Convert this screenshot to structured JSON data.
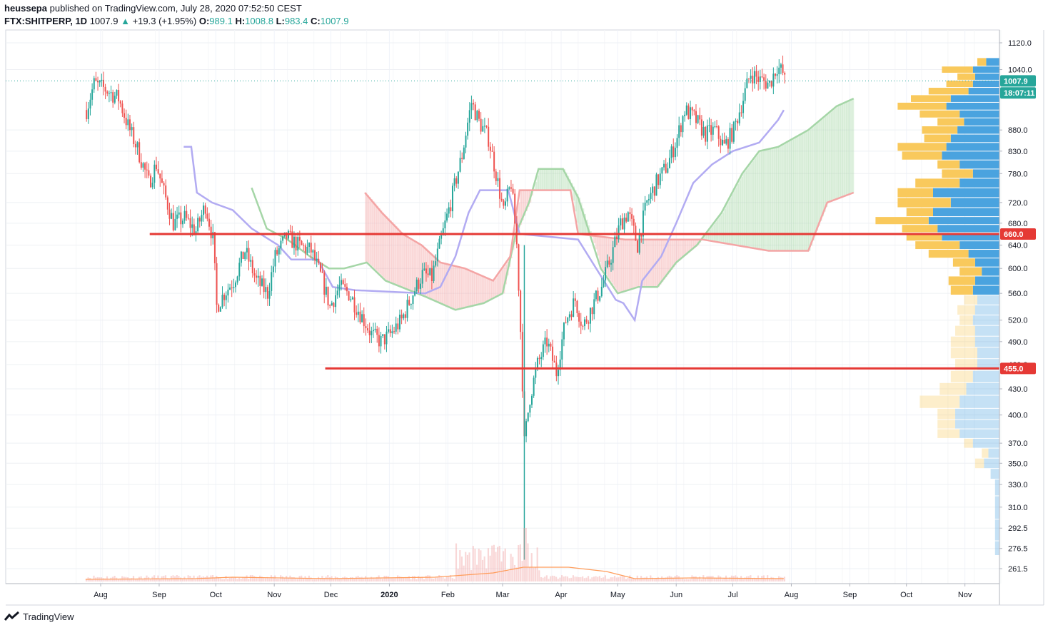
{
  "header": {
    "publisher": "heussepa",
    "published_text": "published on TradingView.com, July 28, 2020 07:52:50 CEST",
    "symbol": "FTX:SHITPERP, 1D",
    "last": "1007.9",
    "arrow": "▲",
    "change": "+19.3 (+1.95%)",
    "open_label": "O:",
    "open": "989.1",
    "high_label": "H:",
    "high": "1008.8",
    "low_label": "L:",
    "low": "983.4",
    "close_label": "C:",
    "close": "1007.9"
  },
  "footer": {
    "brand": "TradingView"
  },
  "colors": {
    "up": "#26a69a",
    "down": "#ef5350",
    "level": "#e53935",
    "kijun": "#b2abf2",
    "spanA": "#a5d6a7",
    "spanB": "#f4a5a5",
    "vp_up": "#4aa3df",
    "vp_down": "#f9c95c",
    "vol_ma": "#ff9c5a"
  },
  "chart_data": {
    "type": "candlestick",
    "y_axis": {
      "ticks": [
        "1120.0",
        "1040.0",
        "880.0",
        "830.0",
        "780.0",
        "720.0",
        "680.0",
        "640.0",
        "600.0",
        "560.0",
        "520.0",
        "490.0",
        "460.0",
        "430.0",
        "400.0",
        "370.0",
        "350.0",
        "330.0",
        "310.0",
        "292.5",
        "276.5",
        "261.5"
      ],
      "range": [
        250,
        1150
      ],
      "scale": "log"
    },
    "x_axis": {
      "ticks": [
        "Aug",
        "Sep",
        "Oct",
        "Nov",
        "Dec",
        "2020",
        "Feb",
        "Mar",
        "Apr",
        "May",
        "Jun",
        "Jul",
        "Aug",
        "Sep",
        "Oct",
        "Nov"
      ]
    },
    "price_badges": [
      {
        "label": "1007.9",
        "value": 1007.9,
        "color": "#26a69a"
      },
      {
        "label": "18:07:11",
        "value": 975,
        "color": "#26a69a"
      },
      {
        "label": "660.0",
        "value": 660.0,
        "color": "#e53935"
      },
      {
        "label": "455.0",
        "value": 455.0,
        "color": "#e53935"
      }
    ],
    "horizontal_levels": [
      {
        "value": 660.0,
        "from": "2019-08-27",
        "to": "2020-11-30"
      },
      {
        "value": 455.0,
        "from": "2019-11-28",
        "to": "2020-11-30"
      }
    ],
    "close_path": [
      [
        "2019-07-24",
        930
      ],
      [
        "2019-07-28",
        1000
      ],
      [
        "2019-08-03",
        985
      ],
      [
        "2019-08-10",
        960
      ],
      [
        "2019-08-15",
        890
      ],
      [
        "2019-08-20",
        835
      ],
      [
        "2019-08-26",
        760
      ],
      [
        "2019-08-30",
        800
      ],
      [
        "2019-09-03",
        740
      ],
      [
        "2019-09-08",
        680
      ],
      [
        "2019-09-14",
        690
      ],
      [
        "2019-09-20",
        665
      ],
      [
        "2019-09-25",
        715
      ],
      [
        "2019-09-29",
        650
      ],
      [
        "2019-10-01",
        540
      ],
      [
        "2019-10-05",
        560
      ],
      [
        "2019-10-10",
        580
      ],
      [
        "2019-10-16",
        630
      ],
      [
        "2019-10-22",
        580
      ],
      [
        "2019-10-28",
        560
      ],
      [
        "2019-11-01",
        620
      ],
      [
        "2019-11-07",
        655
      ],
      [
        "2019-11-13",
        640
      ],
      [
        "2019-11-20",
        630
      ],
      [
        "2019-11-26",
        580
      ],
      [
        "2019-11-30",
        540
      ],
      [
        "2019-12-05",
        570
      ],
      [
        "2019-12-10",
        560
      ],
      [
        "2019-12-16",
        530
      ],
      [
        "2019-12-22",
        500
      ],
      [
        "2019-12-27",
        490
      ],
      [
        "2020-01-01",
        500
      ],
      [
        "2020-01-07",
        520
      ],
      [
        "2020-01-13",
        560
      ],
      [
        "2020-01-18",
        590
      ],
      [
        "2020-01-23",
        585
      ],
      [
        "2020-01-28",
        650
      ],
      [
        "2020-02-02",
        720
      ],
      [
        "2020-02-08",
        820
      ],
      [
        "2020-02-13",
        950
      ],
      [
        "2020-02-17",
        900
      ],
      [
        "2020-02-22",
        860
      ],
      [
        "2020-02-26",
        780
      ],
      [
        "2020-03-01",
        700
      ],
      [
        "2020-03-05",
        760
      ],
      [
        "2020-03-08",
        640
      ],
      [
        "2020-03-12",
        370
      ],
      [
        "2020-03-15",
        420
      ],
      [
        "2020-03-19",
        460
      ],
      [
        "2020-03-24",
        490
      ],
      [
        "2020-03-29",
        450
      ],
      [
        "2020-04-03",
        520
      ],
      [
        "2020-04-08",
        550
      ],
      [
        "2020-04-12",
        510
      ],
      [
        "2020-04-17",
        540
      ],
      [
        "2020-04-22",
        570
      ],
      [
        "2020-04-27",
        620
      ],
      [
        "2020-05-02",
        680
      ],
      [
        "2020-05-06",
        700
      ],
      [
        "2020-05-11",
        640
      ],
      [
        "2020-05-16",
        720
      ],
      [
        "2020-05-21",
        760
      ],
      [
        "2020-05-27",
        800
      ],
      [
        "2020-06-01",
        860
      ],
      [
        "2020-06-05",
        930
      ],
      [
        "2020-06-10",
        910
      ],
      [
        "2020-06-16",
        870
      ],
      [
        "2020-06-21",
        880
      ],
      [
        "2020-06-26",
        840
      ],
      [
        "2020-07-01",
        880
      ],
      [
        "2020-07-06",
        960
      ],
      [
        "2020-07-10",
        1030
      ],
      [
        "2020-07-15",
        1010
      ],
      [
        "2020-07-20",
        1000
      ],
      [
        "2020-07-24",
        1050
      ],
      [
        "2020-07-27",
        1030
      ],
      [
        "2020-07-28",
        1007.9
      ]
    ],
    "kijun": [
      [
        "2019-09-14",
        840
      ],
      [
        "2019-09-18",
        840
      ],
      [
        "2019-09-21",
        740
      ],
      [
        "2019-09-29",
        720
      ],
      [
        "2019-10-10",
        705
      ],
      [
        "2019-10-20",
        670
      ],
      [
        "2019-11-03",
        640
      ],
      [
        "2019-11-10",
        615
      ],
      [
        "2019-11-24",
        615
      ],
      [
        "2019-12-02",
        570
      ],
      [
        "2019-12-14",
        565
      ],
      [
        "2020-01-20",
        560
      ],
      [
        "2020-01-28",
        570
      ],
      [
        "2020-02-05",
        620
      ],
      [
        "2020-02-12",
        700
      ],
      [
        "2020-02-18",
        745
      ],
      [
        "2020-03-04",
        745
      ],
      [
        "2020-03-10",
        660
      ],
      [
        "2020-04-10",
        650
      ],
      [
        "2020-04-30",
        550
      ],
      [
        "2020-05-04",
        545
      ],
      [
        "2020-05-10",
        520
      ],
      [
        "2020-05-14",
        580
      ],
      [
        "2020-05-24",
        620
      ],
      [
        "2020-06-01",
        680
      ],
      [
        "2020-06-10",
        760
      ],
      [
        "2020-06-20",
        800
      ],
      [
        "2020-07-01",
        830
      ],
      [
        "2020-07-15",
        850
      ],
      [
        "2020-07-25",
        905
      ],
      [
        "2020-07-28",
        930
      ]
    ],
    "ichimoku_cloud": {
      "span_a": [
        [
          "2019-10-20",
          750
        ],
        [
          "2019-10-28",
          670
        ],
        [
          "2019-11-08",
          650
        ],
        [
          "2019-11-20",
          620
        ],
        [
          "2019-11-30",
          600
        ],
        [
          "2019-12-08",
          600
        ],
        [
          "2019-12-20",
          610
        ],
        [
          "2019-12-30",
          580
        ],
        [
          "2020-01-20",
          555
        ],
        [
          "2020-02-05",
          535
        ],
        [
          "2020-02-20",
          545
        ],
        [
          "2020-03-01",
          560
        ],
        [
          "2020-03-08",
          660
        ],
        [
          "2020-03-15",
          720
        ],
        [
          "2020-03-20",
          790
        ],
        [
          "2020-04-02",
          790
        ],
        [
          "2020-04-10",
          730
        ],
        [
          "2020-04-22",
          600
        ],
        [
          "2020-05-01",
          560
        ],
        [
          "2020-05-12",
          570
        ],
        [
          "2020-05-22",
          570
        ],
        [
          "2020-06-01",
          610
        ],
        [
          "2020-06-12",
          640
        ],
        [
          "2020-06-25",
          700
        ],
        [
          "2020-07-06",
          780
        ],
        [
          "2020-07-15",
          830
        ],
        [
          "2020-07-25",
          840
        ],
        [
          "2020-08-10",
          880
        ],
        [
          "2020-08-25",
          940
        ],
        [
          "2020-09-03",
          960
        ]
      ],
      "span_b": [
        [
          "2019-12-19",
          740
        ],
        [
          "2019-12-28",
          700
        ],
        [
          "2020-01-08",
          660
        ],
        [
          "2020-01-18",
          640
        ],
        [
          "2020-01-28",
          610
        ],
        [
          "2020-02-10",
          600
        ],
        [
          "2020-02-25",
          580
        ],
        [
          "2020-03-05",
          620
        ],
        [
          "2020-03-10",
          745
        ],
        [
          "2020-04-06",
          745
        ],
        [
          "2020-04-10",
          660
        ],
        [
          "2020-05-05",
          650
        ],
        [
          "2020-06-15",
          650
        ],
        [
          "2020-07-20",
          630
        ],
        [
          "2020-08-10",
          630
        ],
        [
          "2020-08-20",
          720
        ],
        [
          "2020-09-03",
          740
        ]
      ]
    },
    "volume_profile": {
      "rows": [
        {
          "price": 1060,
          "up": 30,
          "down": 20
        },
        {
          "price": 1040,
          "up": 60,
          "down": 70
        },
        {
          "price": 1020,
          "up": 55,
          "down": 40
        },
        {
          "price": 1000,
          "up": 60,
          "down": 60
        },
        {
          "price": 980,
          "up": 70,
          "down": 90
        },
        {
          "price": 960,
          "up": 110,
          "down": 90
        },
        {
          "price": 940,
          "up": 120,
          "down": 110
        },
        {
          "price": 920,
          "up": 90,
          "down": 90
        },
        {
          "price": 900,
          "up": 80,
          "down": 60
        },
        {
          "price": 880,
          "up": 95,
          "down": 80
        },
        {
          "price": 860,
          "up": 110,
          "down": 60
        },
        {
          "price": 840,
          "up": 120,
          "down": 110
        },
        {
          "price": 820,
          "up": 130,
          "down": 90
        },
        {
          "price": 800,
          "up": 90,
          "down": 50
        },
        {
          "price": 780,
          "up": 60,
          "down": 70
        },
        {
          "price": 760,
          "up": 90,
          "down": 100
        },
        {
          "price": 740,
          "up": 150,
          "down": 80
        },
        {
          "price": 720,
          "up": 110,
          "down": 120
        },
        {
          "price": 700,
          "up": 150,
          "down": 60
        },
        {
          "price": 685,
          "up": 160,
          "down": 120
        },
        {
          "price": 670,
          "up": 140,
          "down": 80
        },
        {
          "price": 655,
          "up": 130,
          "down": 80
        },
        {
          "price": 640,
          "up": 90,
          "down": 100
        },
        {
          "price": 625,
          "up": 70,
          "down": 90
        },
        {
          "price": 610,
          "up": 55,
          "down": 50
        },
        {
          "price": 595,
          "up": 40,
          "down": 50
        },
        {
          "price": 580,
          "up": 55,
          "down": 60
        },
        {
          "price": 565,
          "up": 60,
          "down": 50
        },
        {
          "price": 550,
          "up": 50,
          "down": 30
        },
        {
          "price": 535,
          "up": 55,
          "down": 40
        },
        {
          "price": 520,
          "up": 60,
          "down": 30
        },
        {
          "price": 505,
          "up": 55,
          "down": 45
        },
        {
          "price": 490,
          "up": 55,
          "down": 55
        },
        {
          "price": 475,
          "up": 50,
          "down": 60
        },
        {
          "price": 460,
          "up": 50,
          "down": 50
        },
        {
          "price": 445,
          "up": 60,
          "down": 50
        },
        {
          "price": 430,
          "up": 75,
          "down": 60
        },
        {
          "price": 415,
          "up": 90,
          "down": 90
        },
        {
          "price": 400,
          "up": 100,
          "down": 40
        },
        {
          "price": 390,
          "up": 100,
          "down": 40
        },
        {
          "price": 380,
          "up": 90,
          "down": 50
        },
        {
          "price": 370,
          "up": 60,
          "down": 20
        },
        {
          "price": 360,
          "up": 25,
          "down": 15
        },
        {
          "price": 350,
          "up": 35,
          "down": 20
        },
        {
          "price": 340,
          "up": 20,
          "down": 0
        },
        {
          "price": 330,
          "up": 10,
          "down": 0
        },
        {
          "price": 310,
          "up": 10,
          "down": 0
        },
        {
          "price": 290,
          "up": 10,
          "down": 0
        },
        {
          "price": 275,
          "up": 10,
          "down": 0
        }
      ],
      "value_area": [
        565,
        1070
      ]
    }
  }
}
